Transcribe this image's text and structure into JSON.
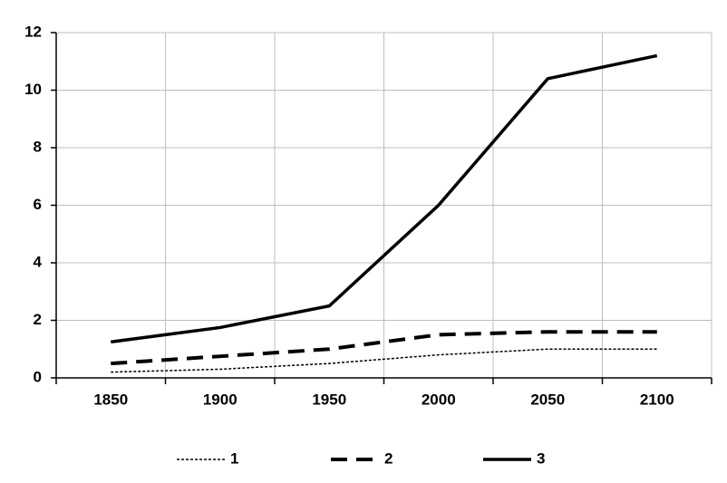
{
  "chart_data": {
    "type": "line",
    "categories": [
      "1850",
      "1900",
      "1950",
      "2000",
      "2050",
      "2100"
    ],
    "series": [
      {
        "name": "1",
        "color": "#000000",
        "style": "dotted",
        "values": [
          0.2,
          0.3,
          0.5,
          0.8,
          1.0,
          1.0
        ]
      },
      {
        "name": "2",
        "color": "#000000",
        "style": "dashed",
        "values": [
          0.5,
          0.75,
          1.0,
          1.5,
          1.6,
          1.6
        ]
      },
      {
        "name": "3",
        "color": "#000000",
        "style": "solid",
        "values": [
          1.25,
          1.75,
          2.5,
          6.0,
          10.4,
          11.2
        ]
      }
    ],
    "ylim": [
      0,
      12
    ],
    "yticks": [
      0,
      2,
      4,
      6,
      8,
      10,
      12
    ],
    "grid": true,
    "legend": "bottom"
  }
}
